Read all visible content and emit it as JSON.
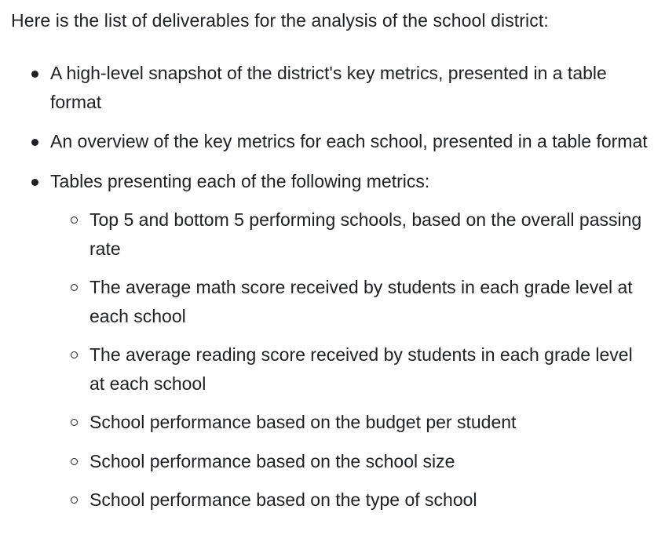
{
  "intro": "Here is the list of deliverables for the analysis of the school district:",
  "deliverables": [
    "A high-level snapshot of the district's key metrics, presented in a table format",
    "An overview of the key metrics for each school, presented in a table format",
    "Tables presenting each of the following metrics:"
  ],
  "metrics": [
    "Top 5 and bottom 5 performing schools, based on the overall passing rate",
    "The average math score received by students in each grade level at each school",
    "The average reading score received by students in each grade level at each school",
    "School performance based on the budget per student",
    "School performance based on the school size",
    "School performance based on the type of school"
  ]
}
